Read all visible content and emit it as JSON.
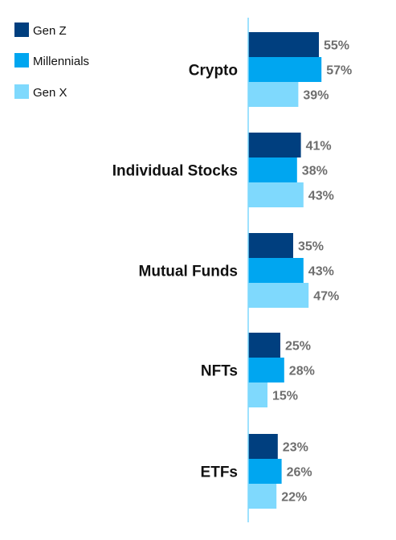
{
  "chart_data": {
    "type": "bar",
    "orientation": "horizontal",
    "categories": [
      "Crypto",
      "Individual Stocks",
      "Mutual Funds",
      "NFTs",
      "ETFs"
    ],
    "series": [
      {
        "name": "Gen Z",
        "values": [
          55,
          41,
          35,
          25,
          23
        ],
        "color": "#003f7f"
      },
      {
        "name": "Millennials",
        "values": [
          57,
          38,
          43,
          28,
          26
        ],
        "color": "#00a6f0"
      },
      {
        "name": "Gen X",
        "values": [
          39,
          43,
          47,
          15,
          22
        ],
        "color": "#7fd9fd"
      }
    ],
    "value_suffix": "%",
    "xlim": [
      0,
      100
    ],
    "axis_color": "#7fd9fd",
    "legend_position": "top-left",
    "grid": false
  }
}
